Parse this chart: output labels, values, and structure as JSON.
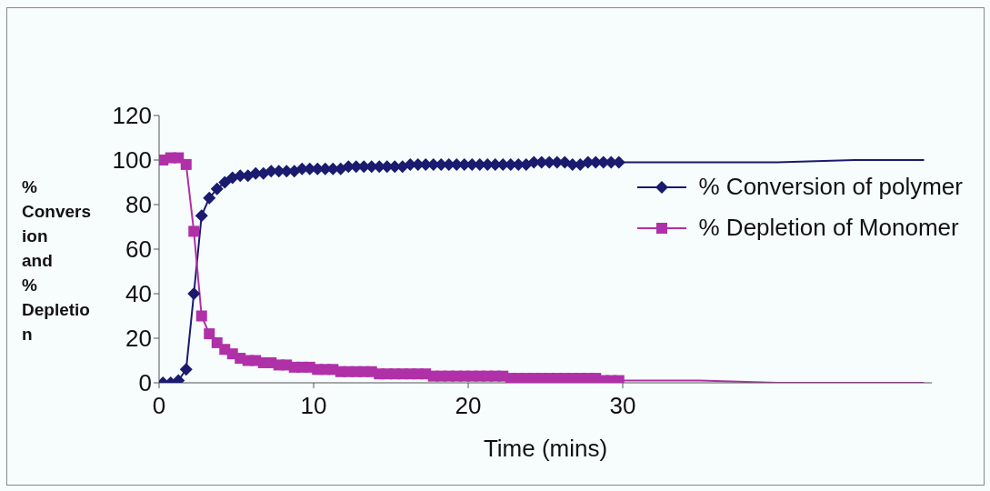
{
  "chart_data": {
    "type": "line",
    "xlabel": "Time (mins)",
    "ylabel": "% Conversion and % Depletion",
    "xlim": [
      0,
      50
    ],
    "xticks": [
      0,
      10,
      20,
      30
    ],
    "ylim": [
      0,
      120
    ],
    "yticks": [
      0,
      20,
      40,
      60,
      80,
      100,
      120
    ],
    "grid": false,
    "legend": "top right",
    "series": [
      {
        "name": "% Conversion of polymer",
        "color": "#1a1a6e",
        "marker": "diamond",
        "x": [
          0.25,
          0.75,
          1.25,
          1.75,
          2.25,
          2.75,
          3.25,
          3.75,
          4.25,
          4.75,
          5.25,
          5.75,
          6.25,
          6.75,
          7.25,
          7.75,
          8.25,
          8.75,
          9.25,
          9.75,
          10.25,
          10.75,
          11.25,
          11.75,
          12.25,
          12.75,
          13.25,
          13.75,
          14.25,
          14.75,
          15.25,
          15.75,
          16.25,
          16.75,
          17.25,
          17.75,
          18.25,
          18.75,
          19.25,
          19.75,
          20.25,
          20.75,
          21.25,
          21.75,
          22.25,
          22.75,
          23.25,
          23.75,
          24.25,
          24.75,
          25.25,
          25.75,
          26.25,
          26.75,
          27.25,
          27.75,
          28.25,
          28.75,
          29.25,
          29.75
        ],
        "values": [
          0,
          0,
          1,
          6,
          40,
          75,
          83,
          87,
          90,
          92,
          93,
          93,
          94,
          94,
          95,
          95,
          95,
          95,
          96,
          96,
          96,
          96,
          96,
          96,
          97,
          97,
          97,
          97,
          97,
          97,
          97,
          97,
          98,
          98,
          98,
          98,
          98,
          98,
          98,
          98,
          98,
          98,
          98,
          98,
          98,
          98,
          98,
          98,
          99,
          99,
          99,
          99,
          99,
          98,
          98,
          99,
          99,
          99,
          99,
          99
        ]
      },
      {
        "name": "% Depletion of Monomer",
        "color": "#b030a8",
        "marker": "square",
        "x": [
          0.25,
          0.75,
          1.25,
          1.75,
          2.25,
          2.75,
          3.25,
          3.75,
          4.25,
          4.75,
          5.25,
          5.75,
          6.25,
          6.75,
          7.25,
          7.75,
          8.25,
          8.75,
          9.25,
          9.75,
          10.25,
          10.75,
          11.25,
          11.75,
          12.25,
          12.75,
          13.25,
          13.75,
          14.25,
          14.75,
          15.25,
          15.75,
          16.25,
          16.75,
          17.25,
          17.75,
          18.25,
          18.75,
          19.25,
          19.75,
          20.25,
          20.75,
          21.25,
          21.75,
          22.25,
          22.75,
          23.25,
          23.75,
          24.25,
          24.75,
          25.25,
          25.75,
          26.25,
          26.75,
          27.25,
          27.75,
          28.25,
          28.75,
          29.25,
          29.75
        ],
        "values": [
          100,
          101,
          101,
          98,
          68,
          30,
          22,
          18,
          15,
          13,
          11,
          10,
          10,
          9,
          9,
          8,
          8,
          7,
          7,
          7,
          6,
          6,
          6,
          5,
          5,
          5,
          5,
          5,
          4,
          4,
          4,
          4,
          4,
          4,
          4,
          3,
          3,
          3,
          3,
          3,
          3,
          3,
          3,
          3,
          3,
          2,
          2,
          2,
          2,
          2,
          2,
          2,
          2,
          2,
          2,
          2,
          2,
          1,
          1,
          1
        ]
      },
      {
        "color": "#1a1a6e",
        "marker": "none",
        "x": [
          29.75,
          35,
          40,
          45,
          49.5
        ],
        "values": [
          99,
          99,
          99,
          100,
          100
        ]
      },
      {
        "color": "#b030a8",
        "marker": "none",
        "x": [
          29.75,
          35,
          40,
          45,
          49.5
        ],
        "values": [
          1,
          1,
          0,
          0,
          0
        ]
      }
    ]
  }
}
